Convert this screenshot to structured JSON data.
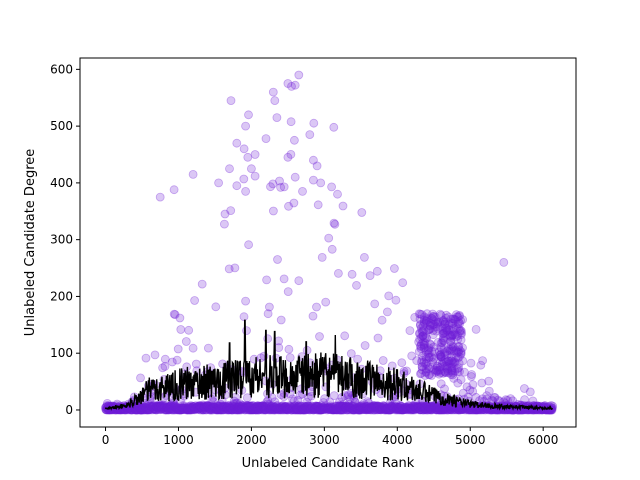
{
  "chart_data": {
    "type": "scatter",
    "title": "",
    "xlabel": "Unlabeled Candidate Rank",
    "ylabel": "Unlabeled Candidate Degree",
    "xlim": [
      -350,
      6450
    ],
    "ylim": [
      -30,
      620
    ],
    "xticks": [
      0,
      1000,
      2000,
      3000,
      4000,
      5000,
      6000
    ],
    "yticks": [
      0,
      100,
      200,
      300,
      400,
      500,
      600
    ],
    "grid": false,
    "legend": "none",
    "n_points": 6130,
    "series": [
      {
        "kind": "scatter",
        "color": "#6f1ed8",
        "alpha": 0.25,
        "marker": "circle",
        "highlighted_points": [
          {
            "x": 2650,
            "y": 590
          },
          {
            "x": 2500,
            "y": 575
          },
          {
            "x": 2550,
            "y": 570
          },
          {
            "x": 2600,
            "y": 572
          },
          {
            "x": 2300,
            "y": 560
          },
          {
            "x": 2320,
            "y": 545
          },
          {
            "x": 1720,
            "y": 545
          },
          {
            "x": 1960,
            "y": 520
          },
          {
            "x": 2350,
            "y": 515
          },
          {
            "x": 1920,
            "y": 500
          },
          {
            "x": 3130,
            "y": 498
          },
          {
            "x": 2800,
            "y": 485
          },
          {
            "x": 2200,
            "y": 478
          },
          {
            "x": 1800,
            "y": 470
          },
          {
            "x": 1900,
            "y": 460
          },
          {
            "x": 2050,
            "y": 450
          },
          {
            "x": 1950,
            "y": 445
          },
          {
            "x": 2500,
            "y": 445
          },
          {
            "x": 2850,
            "y": 440
          },
          {
            "x": 2900,
            "y": 430
          },
          {
            "x": 2000,
            "y": 425
          },
          {
            "x": 1700,
            "y": 425
          },
          {
            "x": 1200,
            "y": 415
          },
          {
            "x": 2050,
            "y": 412
          },
          {
            "x": 2600,
            "y": 410
          },
          {
            "x": 2850,
            "y": 405
          },
          {
            "x": 1550,
            "y": 400
          },
          {
            "x": 2950,
            "y": 400
          },
          {
            "x": 1800,
            "y": 395
          },
          {
            "x": 2450,
            "y": 393
          },
          {
            "x": 3100,
            "y": 393
          },
          {
            "x": 2400,
            "y": 392
          },
          {
            "x": 940,
            "y": 388
          },
          {
            "x": 1920,
            "y": 385
          },
          {
            "x": 2700,
            "y": 385
          },
          {
            "x": 3180,
            "y": 380
          },
          {
            "x": 750,
            "y": 375
          },
          {
            "x": 5460,
            "y": 260
          },
          {
            "x": 5080,
            "y": 142
          },
          {
            "x": 4800,
            "y": 158
          }
        ]
      },
      {
        "kind": "line",
        "name": "",
        "color": "#000000",
        "description_points": [
          {
            "x": 0,
            "y": 2
          },
          {
            "x": 300,
            "y": 8
          },
          {
            "x": 600,
            "y": 35
          },
          {
            "x": 1000,
            "y": 45
          },
          {
            "x": 1500,
            "y": 50
          },
          {
            "x": 2000,
            "y": 60
          },
          {
            "x": 2500,
            "y": 58
          },
          {
            "x": 3000,
            "y": 62
          },
          {
            "x": 3500,
            "y": 55
          },
          {
            "x": 4000,
            "y": 45
          },
          {
            "x": 4500,
            "y": 25
          },
          {
            "x": 5000,
            "y": 10
          },
          {
            "x": 5500,
            "y": 6
          },
          {
            "x": 6100,
            "y": 3
          }
        ],
        "peaks": [
          {
            "x": 1910,
            "y": 158
          },
          {
            "x": 2200,
            "y": 140
          },
          {
            "x": 2320,
            "y": 138
          },
          {
            "x": 3150,
            "y": 132
          },
          {
            "x": 2750,
            "y": 120
          },
          {
            "x": 1700,
            "y": 118
          }
        ]
      }
    ]
  }
}
